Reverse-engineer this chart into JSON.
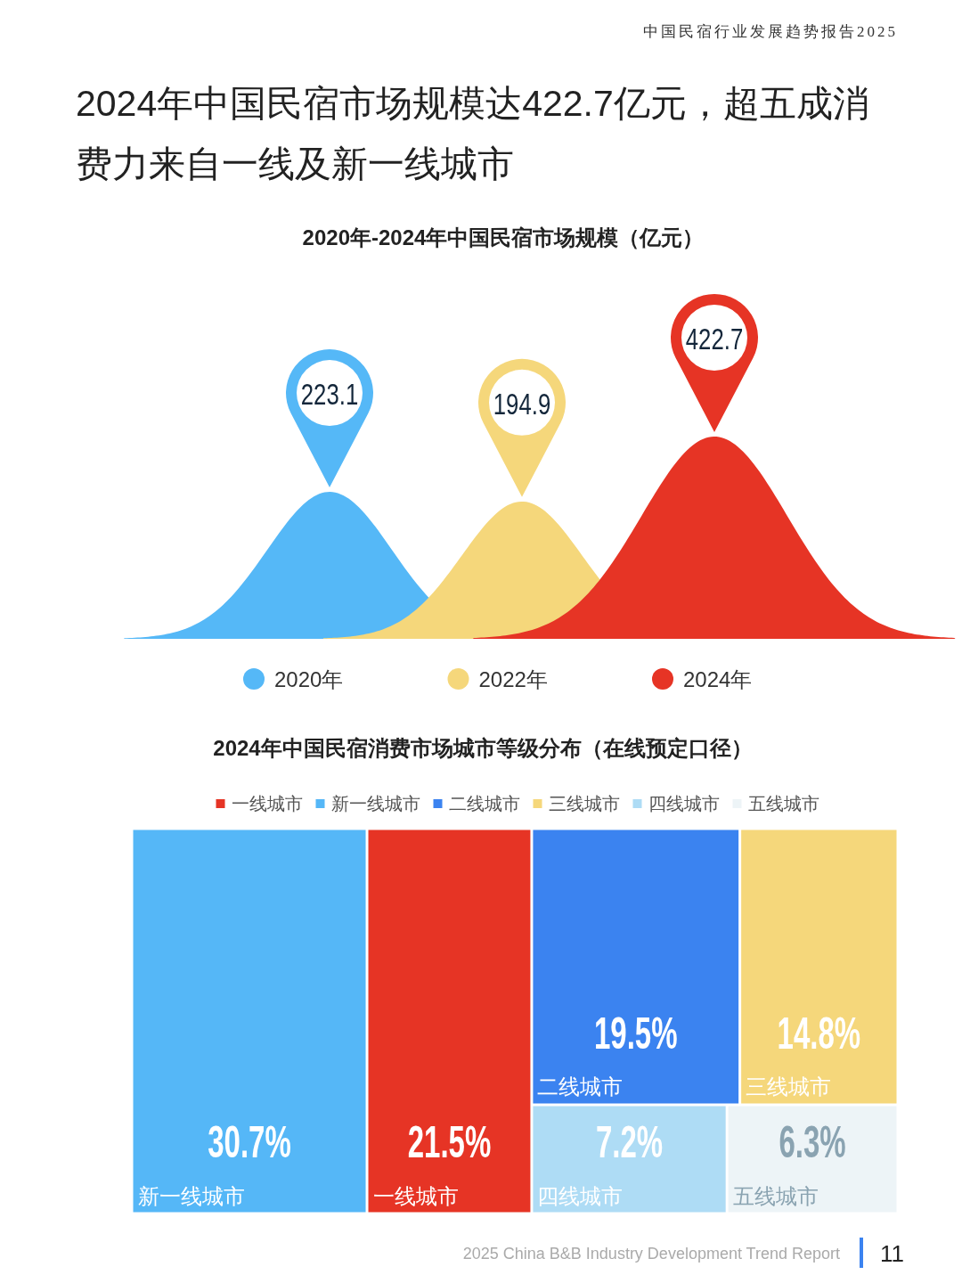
{
  "chart_data": [
    {
      "type": "other",
      "title": "2020年-2024年中国民宿市场规模（亿元）",
      "categories": [
        "2020年",
        "2022年",
        "2024年"
      ],
      "values": [
        223.1,
        194.9,
        422.7
      ],
      "colors": [
        "#55b8f7",
        "#f5d77b",
        "#e63425"
      ],
      "data_labels": true,
      "annotations": [
        "中国民宿行业发展趋势报告2025",
        "2024年中国民宿市场规模达422.7亿元，超五成消费力来自一线及新一线城市"
      ]
    },
    {
      "type": "other",
      "title": "2024年中国民宿消费市场城市等级分布（在线预定口径）",
      "categories": [
        "一线城市",
        "新一线城市",
        "二线城市",
        "三线城市",
        "四线城市",
        "五线城市"
      ],
      "values": [
        21.5,
        30.7,
        19.5,
        14.8,
        7.2,
        6.3
      ],
      "value_labels": [
        "21.5%",
        "30.7%",
        "19.5%",
        "14.8%",
        "7.2%",
        "6.3%"
      ],
      "colors": [
        "#e63425",
        "#55b7f7",
        "#3b83f0",
        "#f5d77b",
        "#aedcf5",
        "#edf4f7"
      ],
      "annotations": [
        "2025 China B&B Industry Development Trend Report",
        "11"
      ]
    }
  ]
}
